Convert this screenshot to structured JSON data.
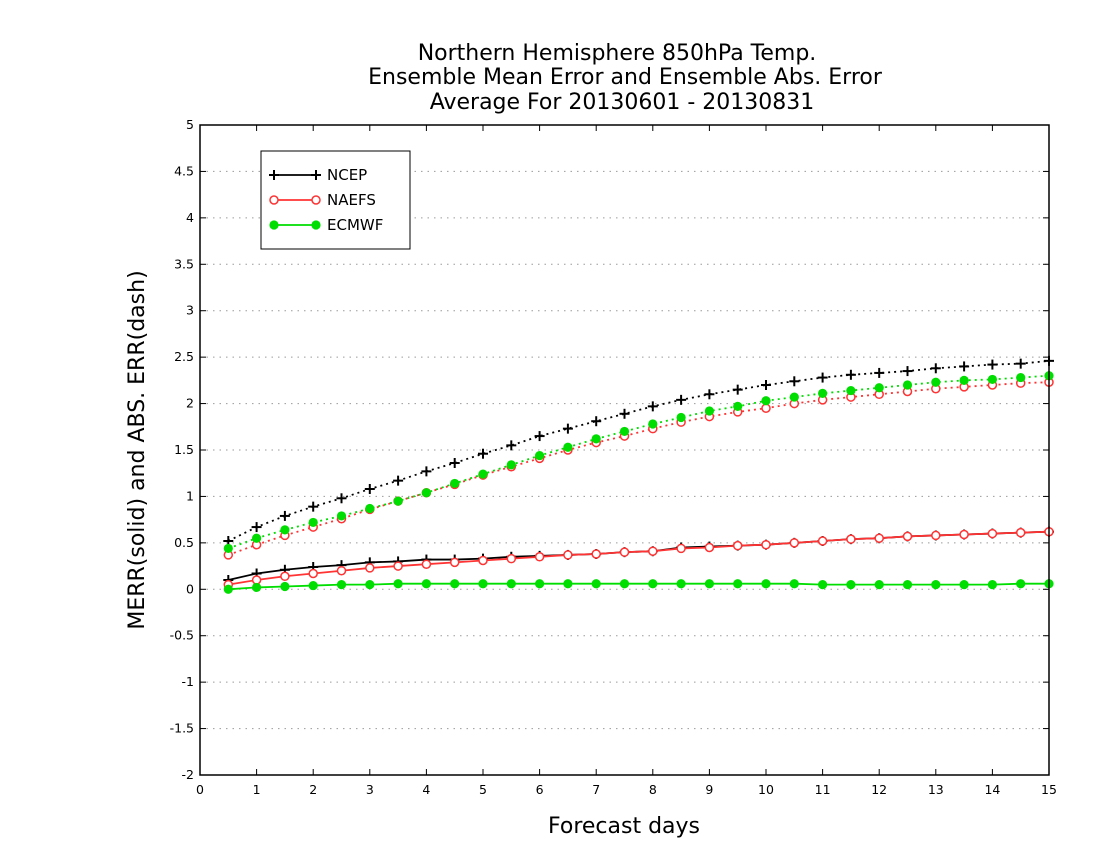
{
  "chart_data": {
    "type": "line",
    "title_lines": [
      "Northern Hemisphere 850hPa Temp.",
      "Ensemble Mean Error and Ensemble Abs. Error",
      "Average For 20130601 - 20130831"
    ],
    "xlabel": "Forecast days",
    "ylabel": "MERR(solid) and ABS. ERR(dash)",
    "xlim": [
      0,
      15
    ],
    "ylim": [
      -2,
      5
    ],
    "xticks": [
      0,
      1,
      2,
      3,
      4,
      5,
      6,
      7,
      8,
      9,
      10,
      11,
      12,
      13,
      14,
      15
    ],
    "xtick_labels": [
      "0",
      "1",
      "2",
      "3",
      "4",
      "5",
      "6",
      "7",
      "8",
      "9",
      "10",
      "11",
      "12",
      "13",
      "14",
      "15"
    ],
    "yticks": [
      -2,
      -1.5,
      -1,
      -0.5,
      0,
      0.5,
      1,
      1.5,
      2,
      2.5,
      3,
      3.5,
      4,
      4.5,
      5
    ],
    "ytick_labels": [
      "-2",
      "-1.5",
      "-1",
      "-0.5",
      "0",
      "0.5",
      "1",
      "1.5",
      "2",
      "2.5",
      "3",
      "3.5",
      "4",
      "4.5",
      "5"
    ],
    "grid": "horizontal dotted",
    "legend_position": "top-left",
    "x": [
      0.5,
      1,
      1.5,
      2,
      2.5,
      3,
      3.5,
      4,
      4.5,
      5,
      5.5,
      6,
      6.5,
      7,
      7.5,
      8,
      8.5,
      9,
      9.5,
      10,
      10.5,
      11,
      11.5,
      12,
      12.5,
      13,
      13.5,
      14,
      14.5,
      15
    ],
    "series": [
      {
        "name": "NCEP",
        "color": "#000000",
        "marker": "plus",
        "mean_error": [
          0.1,
          0.17,
          0.21,
          0.24,
          0.26,
          0.29,
          0.3,
          0.32,
          0.32,
          0.33,
          0.35,
          0.36,
          0.37,
          0.38,
          0.4,
          0.41,
          0.45,
          0.46,
          0.47,
          0.48,
          0.5,
          0.52,
          0.54,
          0.55,
          0.57,
          0.58,
          0.59,
          0.6,
          0.61,
          0.62
        ],
        "abs_error": [
          0.52,
          0.67,
          0.79,
          0.89,
          0.98,
          1.08,
          1.17,
          1.27,
          1.36,
          1.46,
          1.55,
          1.65,
          1.73,
          1.81,
          1.89,
          1.97,
          2.04,
          2.1,
          2.15,
          2.2,
          2.24,
          2.28,
          2.31,
          2.33,
          2.35,
          2.38,
          2.4,
          2.42,
          2.43,
          2.46
        ]
      },
      {
        "name": "NAEFS",
        "color": "#ff3333",
        "marker": "open-circle",
        "mean_error": [
          0.05,
          0.1,
          0.14,
          0.17,
          0.2,
          0.23,
          0.25,
          0.27,
          0.29,
          0.31,
          0.33,
          0.35,
          0.37,
          0.38,
          0.4,
          0.41,
          0.44,
          0.45,
          0.47,
          0.48,
          0.5,
          0.52,
          0.54,
          0.55,
          0.57,
          0.58,
          0.59,
          0.6,
          0.61,
          0.62
        ],
        "abs_error": [
          0.37,
          0.48,
          0.58,
          0.67,
          0.76,
          0.86,
          0.95,
          1.04,
          1.13,
          1.23,
          1.32,
          1.41,
          1.5,
          1.58,
          1.65,
          1.73,
          1.8,
          1.86,
          1.91,
          1.95,
          2.0,
          2.04,
          2.07,
          2.1,
          2.13,
          2.16,
          2.18,
          2.2,
          2.22,
          2.23
        ]
      },
      {
        "name": "ECMWF",
        "color": "#00dd00",
        "marker": "filled-circle",
        "mean_error": [
          0.0,
          0.02,
          0.03,
          0.04,
          0.05,
          0.05,
          0.06,
          0.06,
          0.06,
          0.06,
          0.06,
          0.06,
          0.06,
          0.06,
          0.06,
          0.06,
          0.06,
          0.06,
          0.06,
          0.06,
          0.06,
          0.05,
          0.05,
          0.05,
          0.05,
          0.05,
          0.05,
          0.05,
          0.06,
          0.06
        ],
        "abs_error": [
          0.44,
          0.55,
          0.64,
          0.72,
          0.79,
          0.87,
          0.95,
          1.04,
          1.14,
          1.24,
          1.34,
          1.44,
          1.53,
          1.62,
          1.7,
          1.78,
          1.85,
          1.92,
          1.97,
          2.03,
          2.07,
          2.11,
          2.14,
          2.17,
          2.2,
          2.23,
          2.25,
          2.26,
          2.28,
          2.3
        ]
      }
    ]
  }
}
